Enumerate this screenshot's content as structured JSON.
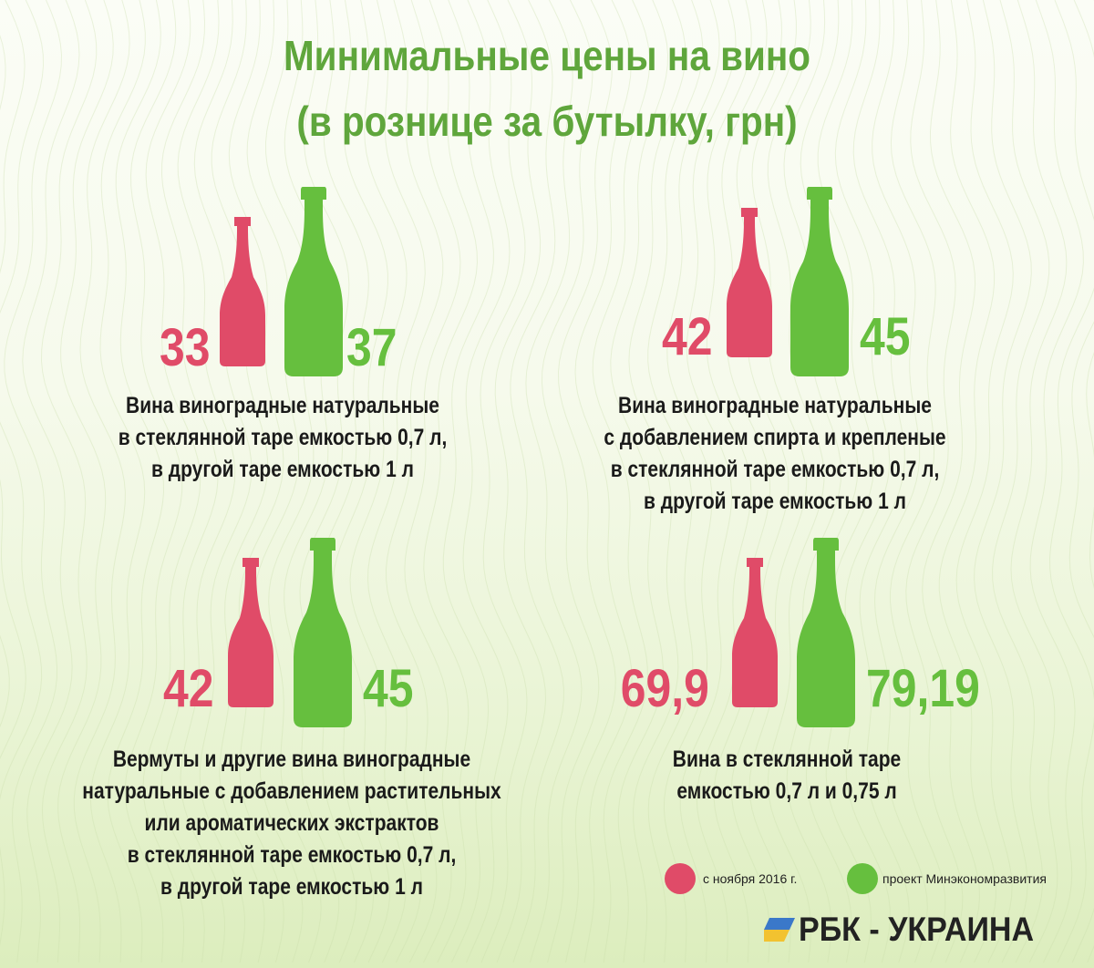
{
  "title_line1": "Минимальные цены на вино",
  "title_line2": "(в рознице за бутылку, грн)",
  "colors": {
    "red": "#e04b68",
    "green": "#66bf3e",
    "title": "#5fa63c"
  },
  "chart_data": {
    "type": "bar",
    "title": "Минимальные цены на вино (в рознице за бутылку, грн)",
    "categories": [
      "Вина виноградные натуральные в стеклянной таре емкостью 0,7 л, в другой таре емкостью 1 л",
      "Вина виноградные натуральные с добавлением спирта и крепленые в стеклянной таре емкостью 0,7 л, в другой таре емкостью 1 л",
      "Вермуты и другие вина виноградные натуральные с добавлением растительных или ароматических экстрактов в стеклянной таре емкостью 0,7 л, в другой таре емкостью 1 л",
      "Вина в стеклянной таре емкостью 0,7 л и 0,75 л"
    ],
    "series": [
      {
        "name": "с ноября 2016 г.",
        "color": "#e04b68",
        "values": [
          33,
          42,
          42,
          69.9
        ]
      },
      {
        "name": "проект Минэкономразвития",
        "color": "#66bf3e",
        "values": [
          37,
          45,
          45,
          79.19
        ]
      }
    ],
    "legend": "bottom-right"
  },
  "panels": [
    {
      "red_label": "33",
      "green_label": "37",
      "desc_lines": [
        "Вина виноградные натуральные",
        "в стеклянной таре емкостью 0,7 л,",
        "в другой таре емкостью 1 л"
      ]
    },
    {
      "red_label": "42",
      "green_label": "45",
      "desc_lines": [
        "Вина виноградные натуральные",
        "с добавлением спирта и крепленые",
        "в стеклянной таре емкостью 0,7 л,",
        "в другой таре емкостью 1 л"
      ]
    },
    {
      "red_label": "42",
      "green_label": "45",
      "desc_lines": [
        "Вермуты и другие вина виноградные",
        "натуральные с добавлением растительных",
        "или ароматических экстрактов",
        "в стеклянной таре емкостью 0,7 л,",
        "в другой таре емкостью 1 л"
      ]
    },
    {
      "red_label": "69,9",
      "green_label": "79,19",
      "desc_lines": [
        "Вина в стеклянной таре",
        "емкостью 0,7 л и 0,75 л"
      ]
    }
  ],
  "legend": {
    "red_label": "с ноября 2016 г.",
    "green_label": "проект Минэкономразвития"
  },
  "logo": {
    "text": "РБК - УКРАИНА",
    "icon": "rbc-flag-icon"
  }
}
